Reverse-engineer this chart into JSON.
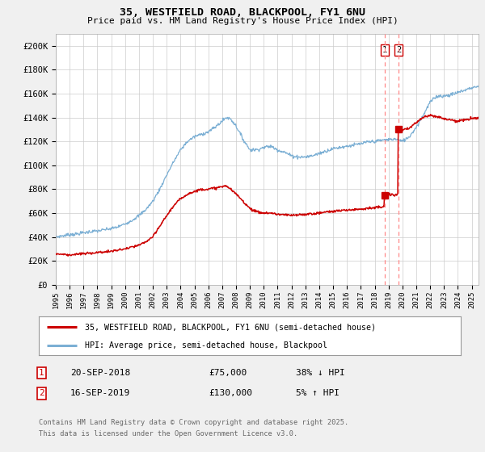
{
  "title1": "35, WESTFIELD ROAD, BLACKPOOL, FY1 6NU",
  "title2": "Price paid vs. HM Land Registry's House Price Index (HPI)",
  "ylabel_ticks": [
    "£0",
    "£20K",
    "£40K",
    "£60K",
    "£80K",
    "£100K",
    "£120K",
    "£140K",
    "£160K",
    "£180K",
    "£200K"
  ],
  "ytick_vals": [
    0,
    20000,
    40000,
    60000,
    80000,
    100000,
    120000,
    140000,
    160000,
    180000,
    200000
  ],
  "ylim": [
    0,
    210000
  ],
  "xlim_start": 1995.0,
  "xlim_end": 2025.5,
  "xtick_years": [
    1995,
    1996,
    1997,
    1998,
    1999,
    2000,
    2001,
    2002,
    2003,
    2004,
    2005,
    2006,
    2007,
    2008,
    2009,
    2010,
    2011,
    2012,
    2013,
    2014,
    2015,
    2016,
    2017,
    2018,
    2019,
    2020,
    2021,
    2022,
    2023,
    2024,
    2025
  ],
  "vline1_x": 2018.72,
  "vline2_x": 2019.71,
  "vline_color": "#ff8888",
  "marker1_x": 2018.72,
  "marker1_y": 75000,
  "marker2_x": 2019.71,
  "marker2_y": 130000,
  "marker_color": "#cc0000",
  "hpi_color": "#7bafd4",
  "price_color": "#cc0000",
  "legend_label1": "35, WESTFIELD ROAD, BLACKPOOL, FY1 6NU (semi-detached house)",
  "legend_label2": "HPI: Average price, semi-detached house, Blackpool",
  "table_row1": [
    "1",
    "20-SEP-2018",
    "£75,000",
    "38% ↓ HPI"
  ],
  "table_row2": [
    "2",
    "16-SEP-2019",
    "£130,000",
    "5% ↑ HPI"
  ],
  "footnote1": "Contains HM Land Registry data © Crown copyright and database right 2025.",
  "footnote2": "This data is licensed under the Open Government Licence v3.0.",
  "bg_color": "#f0f0f0",
  "plot_bg_color": "#ffffff",
  "grid_color": "#cccccc"
}
